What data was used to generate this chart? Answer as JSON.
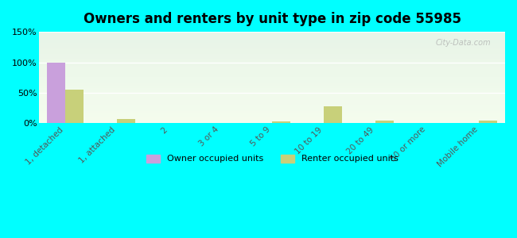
{
  "title": "Owners and renters by unit type in zip code 55985",
  "categories": [
    "1, detached",
    "1, attached",
    "2",
    "3 or 4",
    "5 to 9",
    "10 to 19",
    "20 to 49",
    "50 or more",
    "Mobile home"
  ],
  "owner_values": [
    100,
    0,
    0,
    0,
    0,
    0,
    0,
    0,
    0
  ],
  "renter_values": [
    55,
    7,
    0,
    0,
    3,
    28,
    4,
    0,
    4
  ],
  "owner_color": "#c9a0dc",
  "renter_color": "#c8d07a",
  "background_color": "#00ffff",
  "plot_bg_top": "#e8f5e8",
  "plot_bg_bottom": "#f5ffe8",
  "ylim": [
    0,
    150
  ],
  "yticks": [
    0,
    50,
    100,
    150
  ],
  "ytick_labels": [
    "0%",
    "50%",
    "100%",
    "150%"
  ],
  "bar_width": 0.35,
  "watermark": "City-Data.com",
  "legend_owner": "Owner occupied units",
  "legend_renter": "Renter occupied units"
}
